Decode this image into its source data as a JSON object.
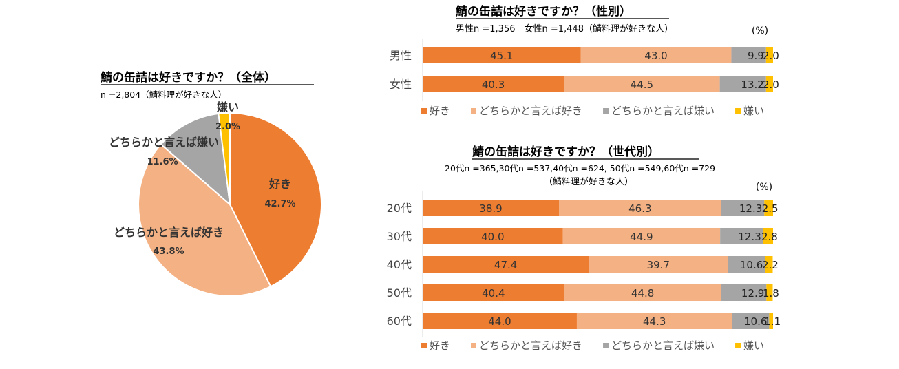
{
  "colors": {
    "like": "#ED7D31",
    "somewhat_like": "#F4B183",
    "somewhat_dislike": "#A5A5A5",
    "dislike": "#FFC000"
  },
  "chart_data": [
    {
      "type": "pie",
      "title": "鯖の缶詰は好きですか？（全体）",
      "subtitle": "n =2,804（鯖料理が好きな人）",
      "slices": [
        {
          "name": "好き",
          "value": 42.7,
          "label": "42.7%"
        },
        {
          "name": "どちらかと言えば好き",
          "value": 43.8,
          "label": "43.8%"
        },
        {
          "name": "どちらかと言えば嫌い",
          "value": 11.6,
          "label": "11.6%"
        },
        {
          "name": "嫌い",
          "value": 2.0,
          "label": "2.0%"
        }
      ]
    },
    {
      "type": "bar",
      "orientation": "horizontal",
      "stacked": true,
      "title": "鯖の缶詰は好きですか？（性別）",
      "subtitle": "男性n =1,356　女性n =1,448（鯖料理が好きな人）",
      "unit": "(%)",
      "categories": [
        "男性",
        "女性"
      ],
      "series": [
        {
          "name": "好き",
          "values": [
            45.1,
            40.3
          ],
          "labels": [
            "45.1",
            "40.3"
          ]
        },
        {
          "name": "どちらかと言えば好き",
          "values": [
            43.0,
            44.5
          ],
          "labels": [
            "43.0",
            "44.5"
          ]
        },
        {
          "name": "どちらかと言えば嫌い",
          "values": [
            9.9,
            13.2
          ],
          "labels": [
            "9.9",
            "13.2"
          ]
        },
        {
          "name": "嫌い",
          "values": [
            2.0,
            2.0
          ],
          "labels": [
            "2.0",
            "2.0"
          ]
        }
      ],
      "xlim": [
        0,
        100
      ],
      "legend": "bottom"
    },
    {
      "type": "bar",
      "orientation": "horizontal",
      "stacked": true,
      "title": "鯖の缶詰は好きですか？（世代別）",
      "subtitle": "20代n =365,30代n =537,40代n =624, 50代n =549,60代n =729",
      "subtitle2": "（鯖料理が好きな人）",
      "unit": "(%)",
      "categories": [
        "20代",
        "30代",
        "40代",
        "50代",
        "60代"
      ],
      "series": [
        {
          "name": "好き",
          "values": [
            38.9,
            40.0,
            47.4,
            40.4,
            44.0
          ],
          "labels": [
            "38.9",
            "40.0",
            "47.4",
            "40.4",
            "44.0"
          ]
        },
        {
          "name": "どちらかと言えば好き",
          "values": [
            46.3,
            44.9,
            39.7,
            44.8,
            44.3
          ],
          "labels": [
            "46.3",
            "44.9",
            "39.7",
            "44.8",
            "44.3"
          ]
        },
        {
          "name": "どちらかと言えば嫌い",
          "values": [
            12.3,
            12.3,
            10.6,
            12.9,
            10.6
          ],
          "labels": [
            "12.3",
            "12.3",
            "10.6",
            "12.9",
            "10.6"
          ]
        },
        {
          "name": "嫌い",
          "values": [
            2.5,
            2.8,
            2.2,
            1.8,
            1.1
          ],
          "labels": [
            "2.5",
            "2.8",
            "2.2",
            "1.8",
            "1.1"
          ]
        }
      ],
      "xlim": [
        0,
        100
      ],
      "legend": "bottom"
    }
  ]
}
